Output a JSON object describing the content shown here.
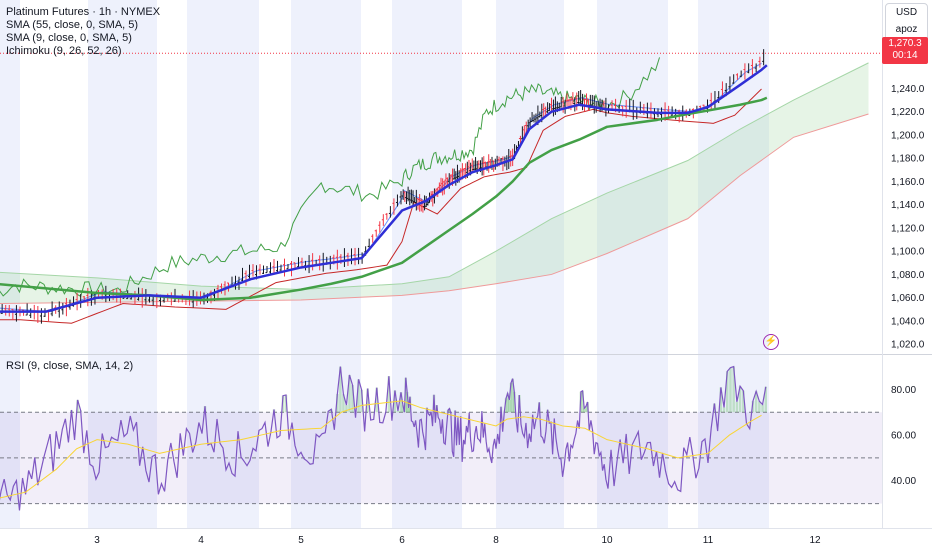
{
  "header": {
    "title": "Platinum Futures · 1h · NYMEX",
    "indicators": [
      "SMA (55, close, 0, SMA, 5)",
      "SMA (9, close, 0, SMA, 5)",
      "Ichimoku (9, 26, 52, 26)"
    ],
    "rsi_label": "RSI (9, close, SMA, 14, 2)"
  },
  "price_scale": {
    "currency": "USD",
    "unit": "apoz",
    "last_price": "1,270.3",
    "countdown": "00:14"
  },
  "colors": {
    "up": "#131722",
    "down": "#f23645",
    "sma55": "#43a047",
    "sma9": "#2f2fd6",
    "tenkan": "#2962ff",
    "kijun": "#c62828",
    "chikou": "#43a047",
    "cloud_bull": "#a5d6a7",
    "cloud_bear": "#ef9a9a",
    "rsi": "#7e57c2",
    "rsi_ma": "#f9d535",
    "session_shade": "#e8ecfb"
  },
  "chart_data": [
    {
      "type": "line",
      "title": "Platinum Futures · 1h · NYMEX",
      "x_tick_labels": [
        "3",
        "4",
        "5",
        "6",
        "8",
        "10",
        "11",
        "12"
      ],
      "y_tick_labels": [
        "1,020.0",
        "1,040.0",
        "1,060.0",
        "1,080.0",
        "1,100.0",
        "1,120.0",
        "1,140.0",
        "1,160.0",
        "1,180.0",
        "1,200.0",
        "1,220.0",
        "1,240.0"
      ],
      "ylim": [
        1015,
        1292
      ],
      "x_days": [
        2.0,
        2.5,
        3.0,
        3.5,
        4.0,
        4.5,
        5.0,
        5.3,
        5.6,
        6.0,
        6.5,
        7.0,
        7.5,
        8.0,
        8.3,
        8.6,
        9.0,
        9.5,
        10.0,
        10.5,
        10.8,
        11.0,
        11.3,
        11.5,
        11.55
      ],
      "series": [
        {
          "name": "Price",
          "values": [
            1049,
            1046,
            1063,
            1060,
            1058,
            1081,
            1089,
            1092,
            1096,
            1150,
            1140,
            1162,
            1172,
            1176,
            1180,
            1212,
            1224,
            1230,
            1224,
            1220,
            1218,
            1225,
            1252,
            1262,
            1270.3
          ]
        },
        {
          "name": "SMA (9, close, 0, SMA, 5)",
          "values": [
            1048,
            1048,
            1060,
            1062,
            1060,
            1076,
            1086,
            1090,
            1094,
            1135,
            1143,
            1157,
            1168,
            1174,
            1179,
            1205,
            1220,
            1226,
            1222,
            1219,
            1219,
            1224,
            1243,
            1256,
            1260
          ]
        },
        {
          "name": "SMA (55, close, 0, SMA, 5)",
          "values": [
            1072,
            1068,
            1064,
            1062,
            1058,
            1060,
            1067,
            1072,
            1078,
            1090,
            1104,
            1118,
            1132,
            1147,
            1160,
            1176,
            1187,
            1196,
            1207,
            1213,
            1218,
            1221,
            1226,
            1230,
            1232
          ]
        }
      ],
      "cloud": {
        "x_days": [
          2.0,
          3.0,
          4.0,
          5.0,
          6.0,
          7.0,
          8.0,
          9.0,
          10.0,
          10.8,
          11.3,
          11.8,
          12.5
        ],
        "span_a": [
          1082,
          1077,
          1070,
          1067,
          1072,
          1078,
          1100,
          1128,
          1150,
          1178,
          1205,
          1230,
          1262
        ],
        "span_b": [
          1055,
          1056,
          1057,
          1058,
          1062,
          1066,
          1072,
          1080,
          1098,
          1128,
          1165,
          1198,
          1218
        ]
      }
    },
    {
      "type": "line",
      "title": "RSI (9, close, SMA, 14, 2)",
      "y_tick_labels": [
        "40.00",
        "60.00",
        "80.00"
      ],
      "ylim": [
        25,
        92
      ],
      "bands": [
        30,
        50,
        70
      ],
      "x_days": [
        2.0,
        2.3,
        2.6,
        2.8,
        3.0,
        3.3,
        3.6,
        4.0,
        4.4,
        4.8,
        5.2,
        5.4,
        5.6,
        6.0,
        6.4,
        6.8,
        7.2,
        7.6,
        8.0,
        8.2,
        8.5,
        8.8,
        9.2,
        9.6,
        10.0,
        10.4,
        10.7,
        11.0,
        11.2,
        11.4,
        11.55
      ],
      "series": [
        {
          "name": "RSI",
          "values": [
            28,
            36,
            55,
            70,
            48,
            60,
            42,
            65,
            50,
            70,
            48,
            86,
            72,
            79,
            62,
            70,
            58,
            64,
            54,
            80,
            62,
            68,
            50,
            72,
            44,
            56,
            42,
            58,
            88,
            70,
            75
          ]
        },
        {
          "name": "RSI-based MA",
          "values": [
            32,
            35,
            45,
            54,
            58,
            56,
            52,
            56,
            58,
            62,
            63,
            70,
            73,
            75,
            72,
            70,
            68,
            66,
            64,
            67,
            68,
            67,
            64,
            63,
            58,
            54,
            50,
            52,
            60,
            66,
            70
          ]
        }
      ]
    }
  ]
}
